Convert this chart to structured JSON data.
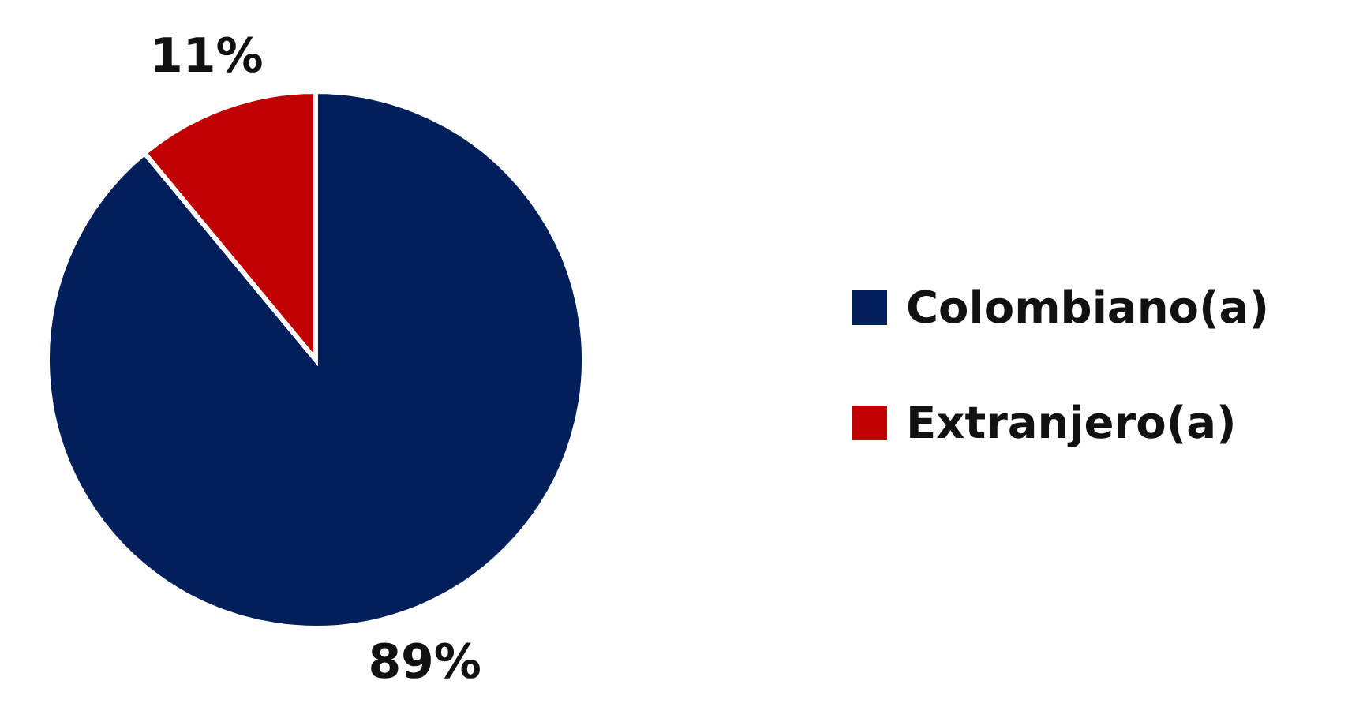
{
  "chart_data": {
    "type": "pie",
    "categories": [
      "Colombiano(a)",
      "Extranjero(a)"
    ],
    "values": [
      89,
      11
    ],
    "value_labels": [
      "89%",
      "11%"
    ],
    "colors": [
      "#001f5b",
      "#c00000"
    ],
    "legend": "right"
  }
}
